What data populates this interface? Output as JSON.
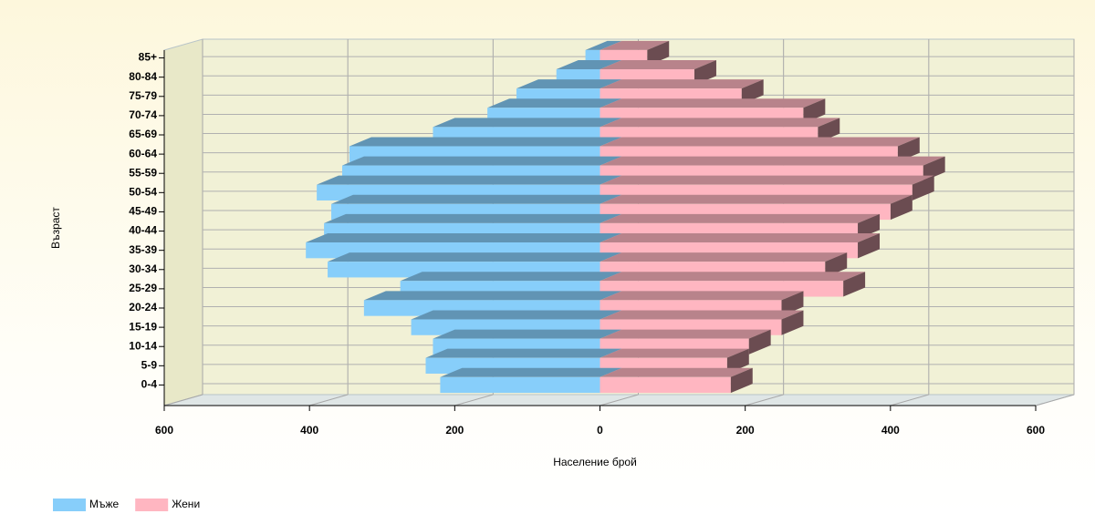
{
  "chart_data": {
    "type": "bar",
    "orientation": "horizontal",
    "style": "population-pyramid-3d",
    "ylabel": "Възраст",
    "xlabel": "Население брой",
    "categories": [
      "0-4",
      "5-9",
      "10-14",
      "15-19",
      "20-24",
      "25-29",
      "30-34",
      "35-39",
      "40-44",
      "45-49",
      "50-54",
      "55-59",
      "60-64",
      "65-69",
      "70-74",
      "75-79",
      "80-84",
      "85+"
    ],
    "series": [
      {
        "name": "Мъже",
        "color": "#87cefa",
        "values": [
          -220,
          -240,
          -230,
          -260,
          -325,
          -275,
          -375,
          -405,
          -380,
          -370,
          -390,
          -355,
          -345,
          -230,
          -155,
          -115,
          -60,
          -20
        ]
      },
      {
        "name": "Жени",
        "color": "#ffb6c1",
        "values": [
          180,
          175,
          205,
          250,
          250,
          335,
          310,
          355,
          355,
          400,
          430,
          445,
          410,
          300,
          280,
          195,
          130,
          65
        ]
      }
    ],
    "xlim": [
      -600,
      600
    ],
    "xticks": [
      {
        "value": -600,
        "label": "600"
      },
      {
        "value": -400,
        "label": "400"
      },
      {
        "value": -200,
        "label": "200"
      },
      0,
      200,
      400,
      600
    ],
    "grid": true,
    "legend": "bottom-left"
  }
}
